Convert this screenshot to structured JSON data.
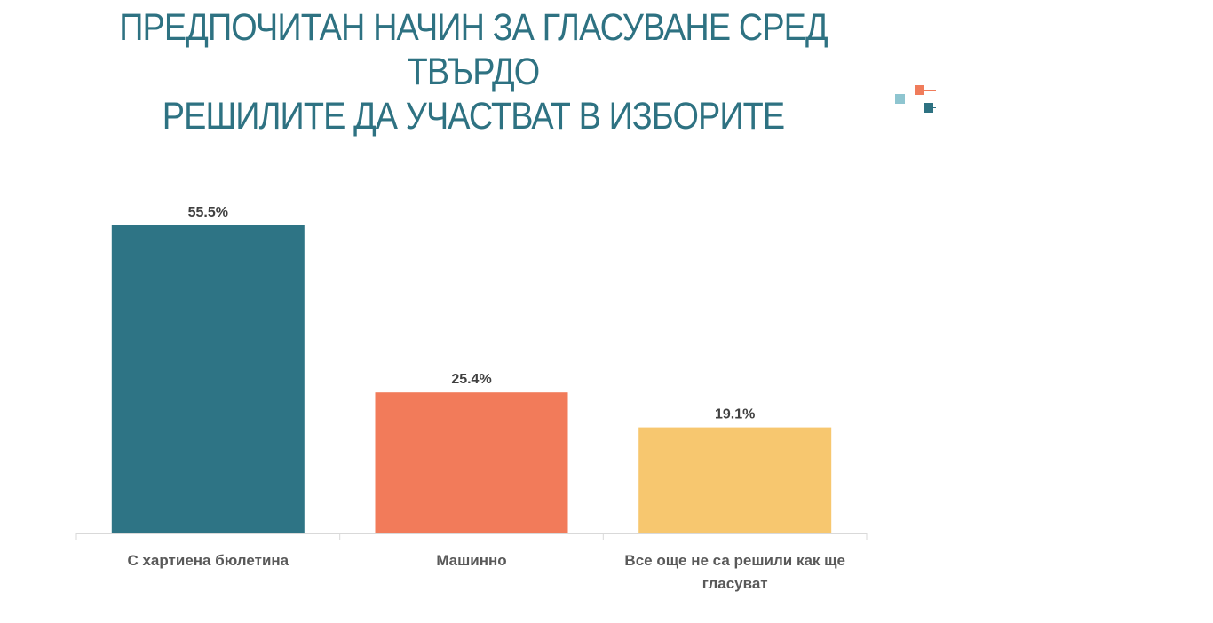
{
  "title": {
    "line1": "ПРЕДПОЧИТАН НАЧИН ЗА ГЛАСУВАНЕ СРЕД ТВЪРДО",
    "line2": "РЕШИЛИТЕ ДА УЧАСТВАТ В ИЗБОРИТЕ"
  },
  "logo": {
    "icon": "logo-squares-icon",
    "colors": [
      "#f07c5b",
      "#8ec5d0",
      "#2e7282"
    ]
  },
  "chart_data": {
    "type": "bar",
    "categories": [
      [
        "С хартиена бюлетина"
      ],
      [
        "Машинно"
      ],
      [
        "Все още не са решили как ще",
        "гласуват"
      ]
    ],
    "values": [
      55.5,
      25.4,
      19.1
    ],
    "value_labels": [
      "55.5%",
      "25.4%",
      "19.1%"
    ],
    "colors": [
      "#2e7485",
      "#f27b5a",
      "#f7c76f"
    ],
    "unit": "%",
    "ylim": [
      0,
      55.5
    ],
    "grid": false,
    "legend": "none",
    "xlabel": "",
    "ylabel": ""
  }
}
